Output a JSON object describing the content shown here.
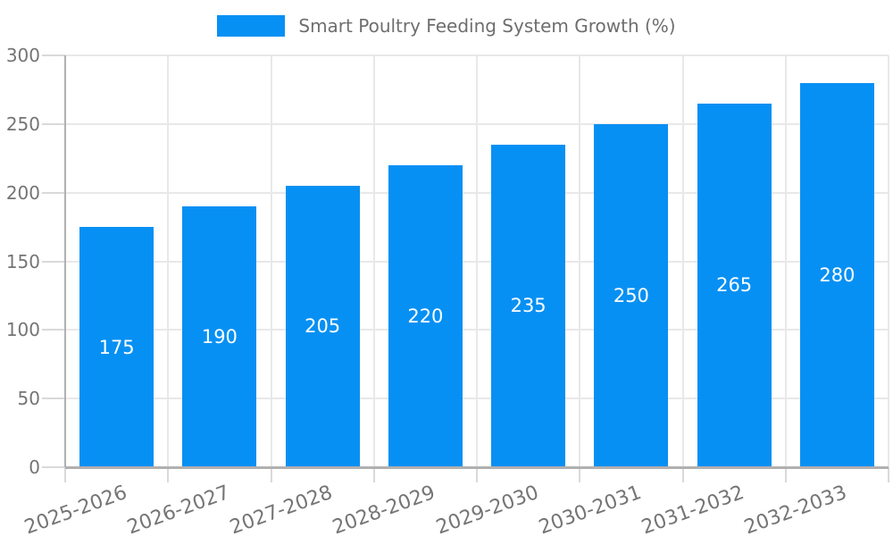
{
  "chart_data": {
    "type": "bar",
    "title": "Smart Poultry Feeding System Growth (%)",
    "categories": [
      "2025-2026",
      "2026-2027",
      "2027-2028",
      "2028-2029",
      "2029-2030",
      "2030-2031",
      "2031-2032",
      "2032-2033"
    ],
    "values": [
      175,
      190,
      205,
      220,
      235,
      250,
      265,
      280
    ],
    "value_labels": [
      "175",
      "190",
      "205",
      "220",
      "235",
      "250",
      "265",
      "280"
    ],
    "xlabel": "",
    "ylabel": "",
    "ylim": [
      0,
      300
    ],
    "yticks": [
      0,
      50,
      100,
      150,
      200,
      250,
      300
    ],
    "grid": true,
    "legend_position": "top-center",
    "bar_color": "#0790F3",
    "value_label_color": "#FFFFFF"
  },
  "colors": {
    "grid": "#E8E8E8",
    "tick": "#D9D9D9",
    "axis": "#B0B0B0",
    "tick_text": "#757575",
    "legend_text": "#6E6E6E",
    "background": "#FFFFFF"
  }
}
